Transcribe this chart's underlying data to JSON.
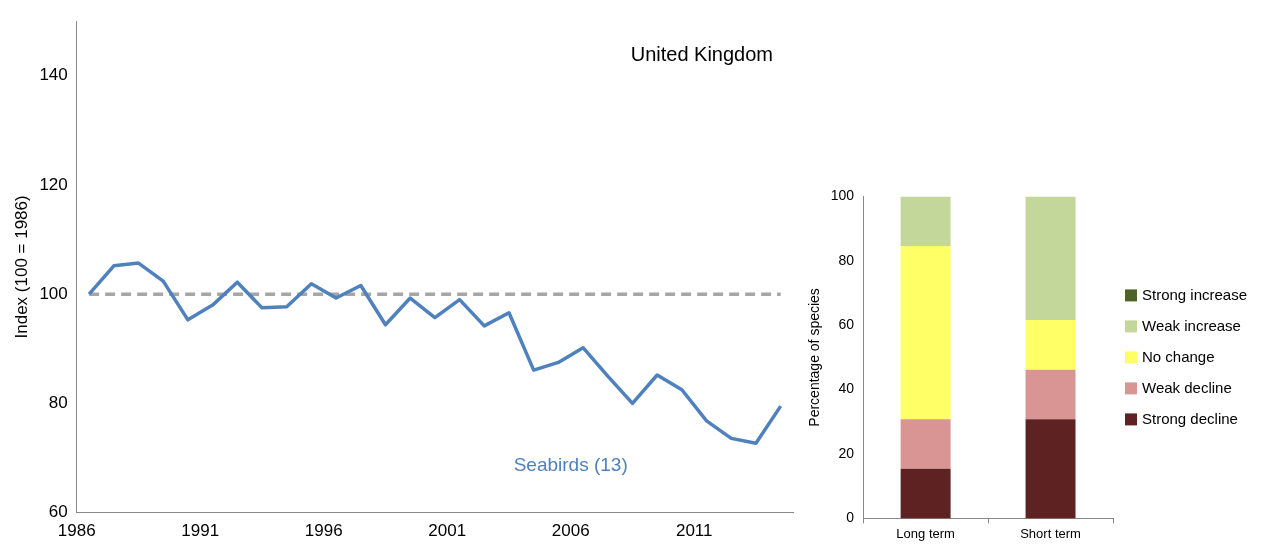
{
  "chart_data": [
    {
      "type": "line",
      "title": "United Kingdom",
      "ylabel": "Index (100 = 1986)",
      "x": [
        1986,
        1987,
        1988,
        1989,
        1990,
        1991,
        1992,
        1993,
        1994,
        1995,
        1996,
        1997,
        1998,
        1999,
        2000,
        2001,
        2002,
        2003,
        2004,
        2005,
        2006,
        2007,
        2008,
        2009,
        2010,
        2011,
        2012,
        2013,
        2014
      ],
      "series": [
        {
          "name": "Seabirds (13)",
          "color": "#4f81bd",
          "values": [
            100,
            105.2,
            105.7,
            102.4,
            95.3,
            98,
            102.2,
            97.5,
            97.7,
            101.9,
            99.3,
            101.6,
            94.4,
            99.3,
            95.7,
            99,
            94.2,
            96.6,
            86.1,
            87.5,
            90.2,
            85,
            80,
            85.2,
            82.5,
            76.8,
            73.6,
            72.7,
            79.5
          ]
        }
      ],
      "xlim": [
        1985.5,
        2014.5
      ],
      "xticks": [
        {
          "value": 1985.5,
          "label": "1986"
        },
        {
          "value": 1990.5,
          "label": "1991"
        },
        {
          "value": 1995.5,
          "label": "1996"
        },
        {
          "value": 2000.5,
          "label": "2001"
        },
        {
          "value": 2005.5,
          "label": "2006"
        },
        {
          "value": 2010.5,
          "label": "2011"
        }
      ],
      "ylim": [
        60,
        150
      ],
      "yticks": [
        60,
        80,
        100,
        120,
        140
      ],
      "ref_lines": [
        {
          "axis": "y",
          "value": 100,
          "label": null,
          "color": "#a6a6a6",
          "line_style": "dashed"
        }
      ],
      "grid": false,
      "legend": false,
      "marker": "none",
      "line_style": "solid"
    },
    {
      "type": "bar",
      "ylabel": "Percentage of species",
      "categories": [
        "Long term",
        "Short term"
      ],
      "stacked": true,
      "series": [
        {
          "name": "Strong decline",
          "color": "#5e2222",
          "values": [
            15.4,
            30.8
          ]
        },
        {
          "name": "Weak decline",
          "color": "#d99594",
          "values": [
            15.4,
            15.4
          ]
        },
        {
          "name": "No change",
          "color": "#ffff66",
          "values": [
            53.8,
            15.4
          ]
        },
        {
          "name": "Weak increase",
          "color": "#c4d79b",
          "values": [
            15.4,
            38.4
          ]
        },
        {
          "name": "Strong increase",
          "color": "#4f6228",
          "values": [
            0,
            0
          ]
        }
      ],
      "ylim": [
        0,
        100
      ],
      "yticks": [
        0,
        20,
        40,
        60,
        80,
        100
      ],
      "grid": false,
      "legend": "right"
    }
  ]
}
